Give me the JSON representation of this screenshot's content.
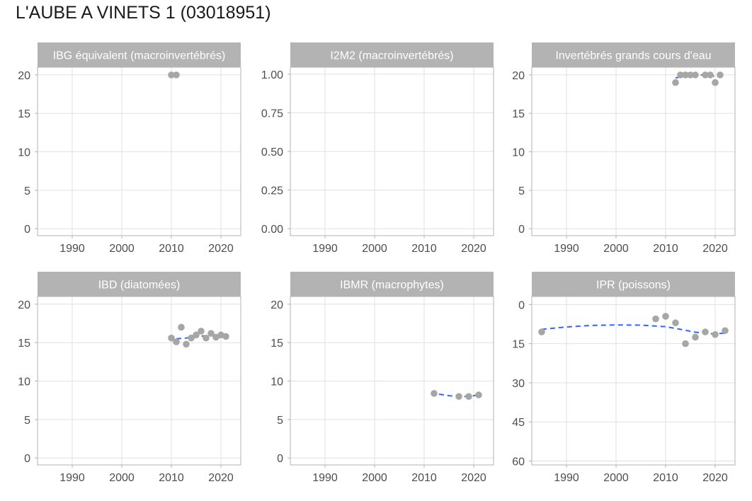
{
  "title": "L'AUBE A VINETS 1 (03018951)",
  "colors": {
    "point": "#a6a6a6",
    "trend": "#3366ff",
    "strip": "#b3b3b3",
    "grid": "#e0e0e0",
    "border": "#b3b3b3",
    "strip_text": "#ffffff",
    "tick_text": "#4d4d4d"
  },
  "chart_data": [
    {
      "type": "scatter",
      "panel": "IBG équivalent (macroinvertébrés)",
      "xlim": [
        1983,
        2024
      ],
      "x_ticks": [
        1990,
        2000,
        2010,
        2020
      ],
      "ylim": [
        -0.9,
        21
      ],
      "y_ticks": [
        "0",
        "5",
        "10",
        "15",
        "20"
      ],
      "y_tick_values": [
        0,
        5,
        10,
        15,
        20
      ],
      "y_reversed": false,
      "points": [
        [
          2010,
          20
        ],
        [
          2011,
          20
        ]
      ],
      "trend": []
    },
    {
      "type": "scatter",
      "panel": "I2M2 (macroinvertébrés)",
      "xlim": [
        1983,
        2024
      ],
      "x_ticks": [
        1990,
        2000,
        2010,
        2020
      ],
      "ylim": [
        -0.045,
        1.045
      ],
      "y_ticks": [
        "0.00",
        "0.25",
        "0.50",
        "0.75",
        "1.00"
      ],
      "y_tick_values": [
        0,
        0.25,
        0.5,
        0.75,
        1.0
      ],
      "y_reversed": false,
      "points": [],
      "trend": []
    },
    {
      "type": "scatter",
      "panel": "Invertébrés grands cours d'eau",
      "xlim": [
        1983,
        2024
      ],
      "x_ticks": [
        1990,
        2000,
        2010,
        2020
      ],
      "ylim": [
        -0.9,
        21
      ],
      "y_ticks": [
        "0",
        "5",
        "10",
        "15",
        "20"
      ],
      "y_tick_values": [
        0,
        5,
        10,
        15,
        20
      ],
      "y_reversed": false,
      "points": [
        [
          2012,
          19
        ],
        [
          2013,
          20
        ],
        [
          2014,
          20
        ],
        [
          2015,
          20
        ],
        [
          2016,
          20
        ],
        [
          2018,
          20
        ],
        [
          2019,
          20
        ],
        [
          2020,
          19
        ],
        [
          2021,
          20
        ]
      ],
      "trend": [
        [
          2012,
          19.6
        ],
        [
          2014,
          19.9
        ],
        [
          2016,
          20.0
        ],
        [
          2018,
          20.0
        ],
        [
          2020,
          19.8
        ],
        [
          2021,
          19.7
        ]
      ]
    },
    {
      "type": "scatter",
      "panel": "IBD (diatomées)",
      "xlim": [
        1983,
        2024
      ],
      "x_ticks": [
        1990,
        2000,
        2010,
        2020
      ],
      "ylim": [
        -0.9,
        21
      ],
      "y_ticks": [
        "0",
        "5",
        "10",
        "15",
        "20"
      ],
      "y_tick_values": [
        0,
        5,
        10,
        15,
        20
      ],
      "y_reversed": false,
      "points": [
        [
          2010,
          15.6
        ],
        [
          2011,
          15.1
        ],
        [
          2012,
          17.0
        ],
        [
          2013,
          14.8
        ],
        [
          2014,
          15.6
        ],
        [
          2015,
          16.0
        ],
        [
          2016,
          16.5
        ],
        [
          2017,
          15.6
        ],
        [
          2018,
          16.2
        ],
        [
          2019,
          15.7
        ],
        [
          2020,
          16.0
        ],
        [
          2021,
          15.8
        ]
      ],
      "trend": [
        [
          2011,
          15.5
        ],
        [
          2013,
          15.6
        ],
        [
          2015,
          15.8
        ],
        [
          2017,
          15.9
        ],
        [
          2019,
          15.9
        ],
        [
          2021,
          15.9
        ]
      ]
    },
    {
      "type": "scatter",
      "panel": "IBMR (macrophytes)",
      "xlim": [
        1983,
        2024
      ],
      "x_ticks": [
        1990,
        2000,
        2010,
        2020
      ],
      "ylim": [
        -0.9,
        21
      ],
      "y_ticks": [
        "0",
        "5",
        "10",
        "15",
        "20"
      ],
      "y_tick_values": [
        0,
        5,
        10,
        15,
        20
      ],
      "y_reversed": false,
      "points": [
        [
          2012,
          8.4
        ],
        [
          2017,
          8.0
        ],
        [
          2019,
          8.0
        ],
        [
          2021,
          8.2
        ]
      ],
      "trend": [
        [
          2013,
          8.3
        ],
        [
          2015,
          8.1
        ],
        [
          2017,
          8.0
        ],
        [
          2019,
          8.0
        ],
        [
          2021,
          8.2
        ]
      ]
    },
    {
      "type": "scatter",
      "panel": "IPR (poissons)",
      "xlim": [
        1983,
        2024
      ],
      "x_ticks": [
        1990,
        2000,
        2010,
        2020
      ],
      "ylim": [
        -3.1,
        61.5
      ],
      "y_ticks": [
        "0",
        "15",
        "30",
        "45",
        "60"
      ],
      "y_tick_values": [
        0,
        15,
        30,
        45,
        60
      ],
      "y_reversed": true,
      "points": [
        [
          1985,
          10.5
        ],
        [
          2008,
          5.5
        ],
        [
          2010,
          4.5
        ],
        [
          2012,
          7.0
        ],
        [
          2014,
          15.0
        ],
        [
          2016,
          12.5
        ],
        [
          2018,
          10.5
        ],
        [
          2020,
          11.5
        ],
        [
          2022,
          10.0
        ]
      ],
      "trend": [
        [
          1985,
          9.5
        ],
        [
          1990,
          8.6
        ],
        [
          1995,
          8.0
        ],
        [
          2000,
          7.8
        ],
        [
          2005,
          7.9
        ],
        [
          2010,
          8.5
        ],
        [
          2013,
          9.5
        ],
        [
          2016,
          10.6
        ],
        [
          2019,
          11.2
        ],
        [
          2022,
          11.0
        ]
      ]
    }
  ]
}
